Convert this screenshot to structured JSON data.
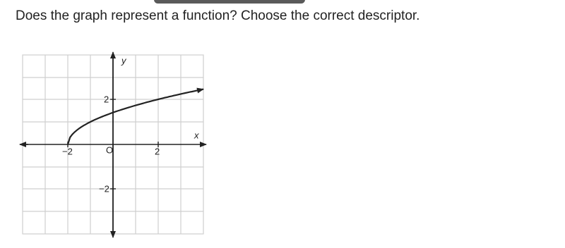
{
  "question": "Does the graph represent a function? Choose the correct descriptor.",
  "graph": {
    "y_label": "y",
    "x_label": "x",
    "origin": "O",
    "x_ticks": [
      "−2",
      "2"
    ],
    "y_ticks": [
      "2",
      "−2"
    ]
  }
}
